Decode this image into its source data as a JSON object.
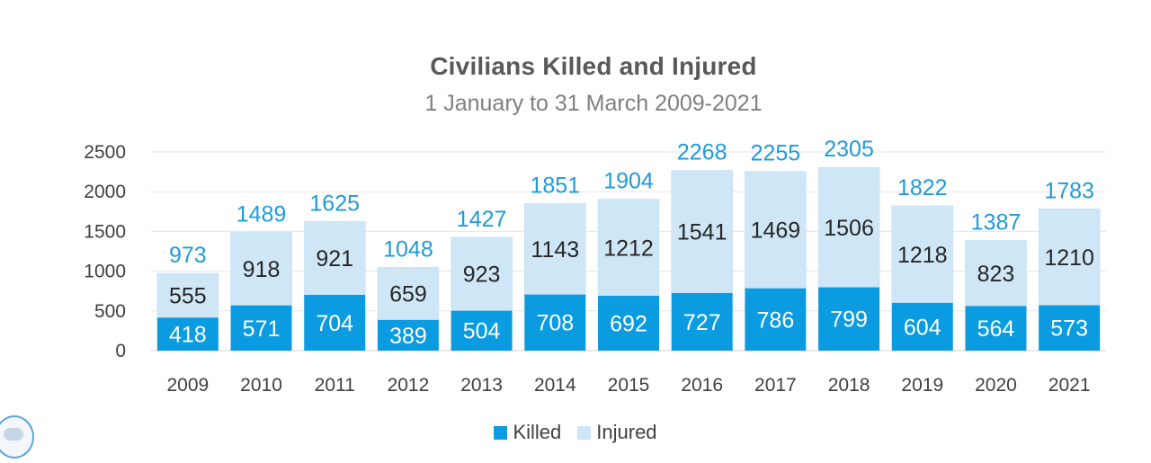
{
  "chart_data": {
    "type": "bar",
    "stacked": true,
    "title": "Civilians Killed and Injured",
    "subtitle": "1 January to 31 March 2009-2021",
    "categories": [
      "2009",
      "2010",
      "2011",
      "2012",
      "2013",
      "2014",
      "2015",
      "2016",
      "2017",
      "2018",
      "2019",
      "2020",
      "2021"
    ],
    "series": [
      {
        "name": "Killed",
        "color": "#0a9be0",
        "values": [
          418,
          571,
          704,
          389,
          504,
          708,
          692,
          727,
          786,
          799,
          604,
          564,
          573
        ]
      },
      {
        "name": "Injured",
        "color": "#cfe6f7",
        "values": [
          555,
          918,
          921,
          659,
          923,
          1143,
          1212,
          1541,
          1469,
          1506,
          1218,
          823,
          1210
        ]
      }
    ],
    "totals": [
      973,
      1489,
      1625,
      1048,
      1427,
      1851,
      1904,
      2268,
      2255,
      2305,
      1822,
      1387,
      1783
    ],
    "ylim": [
      0,
      2500
    ],
    "yticks": [
      0,
      500,
      1000,
      1500,
      2000,
      2500
    ],
    "grid": true,
    "legend": "bottom"
  }
}
